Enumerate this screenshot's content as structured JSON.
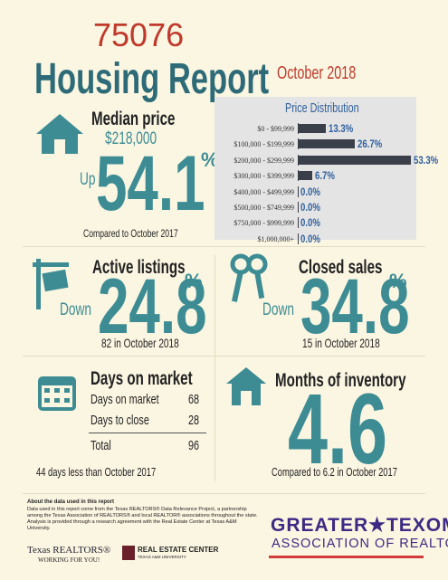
{
  "header": {
    "zip": "75076",
    "title": "Housing Report",
    "date": "October 2018"
  },
  "median_price": {
    "label": "Median price",
    "value": "$218,000",
    "direction": "Up",
    "change": "54.1",
    "unit": "%",
    "comparison": "Compared to October 2017"
  },
  "price_distribution": {
    "title": "Price Distribution",
    "categories": [
      "$0 - $99,999",
      "$100,000 - $199,999",
      "$200,000 - $299,999",
      "$300,000 - $399,999",
      "$400,000 - $499,999",
      "$500,000 - $749,999",
      "$750,000 - $999,999",
      "$1,000,000+"
    ],
    "values": [
      13.3,
      26.7,
      53.3,
      6.7,
      0.0,
      0.0,
      0.0,
      0.0
    ],
    "value_labels": [
      "13.3%",
      "26.7%",
      "53.3%",
      "6.7%",
      "0.0%",
      "0.0%",
      "0.0%",
      "0.0%"
    ]
  },
  "active_listings": {
    "label": "Active listings",
    "direction": "Down",
    "change": "24.8",
    "unit": "%",
    "note": "82 in October 2018"
  },
  "closed_sales": {
    "label": "Closed sales",
    "direction": "Down",
    "change": "34.8",
    "unit": "%",
    "note": "15 in October 2018"
  },
  "days_on_market": {
    "label": "Days on market",
    "rows": [
      [
        "Days on market",
        68
      ],
      [
        "Days to close",
        28
      ],
      [
        "Total",
        96
      ]
    ],
    "note": "44 days less than October 2017"
  },
  "months_of_inventory": {
    "label": "Months of inventory",
    "value": "4.6",
    "note": "Compared to 6.2 in October 2017"
  },
  "footer": {
    "about_title": "About the data used in this report",
    "about_text": "Data used in this report come from the Texas REALTORS® Data Relevance Project, a partnership among the Texas Association of REALTORS® and local REALTOR® associations throughout the state. Analysis is provided through a research agreement with the Real Estate Center at Texas A&M University.",
    "texas_realtors": "Texas REALTORS®",
    "tagline": "WORKING FOR YOU!",
    "real_estate_center": "REAL ESTATE CENTER",
    "university": "TEXAS A&M UNIVERSITY",
    "texoma_top": "GREATER★TEXOMA",
    "texoma_bottom": "ASSOCIATION OF REALTORS"
  }
}
